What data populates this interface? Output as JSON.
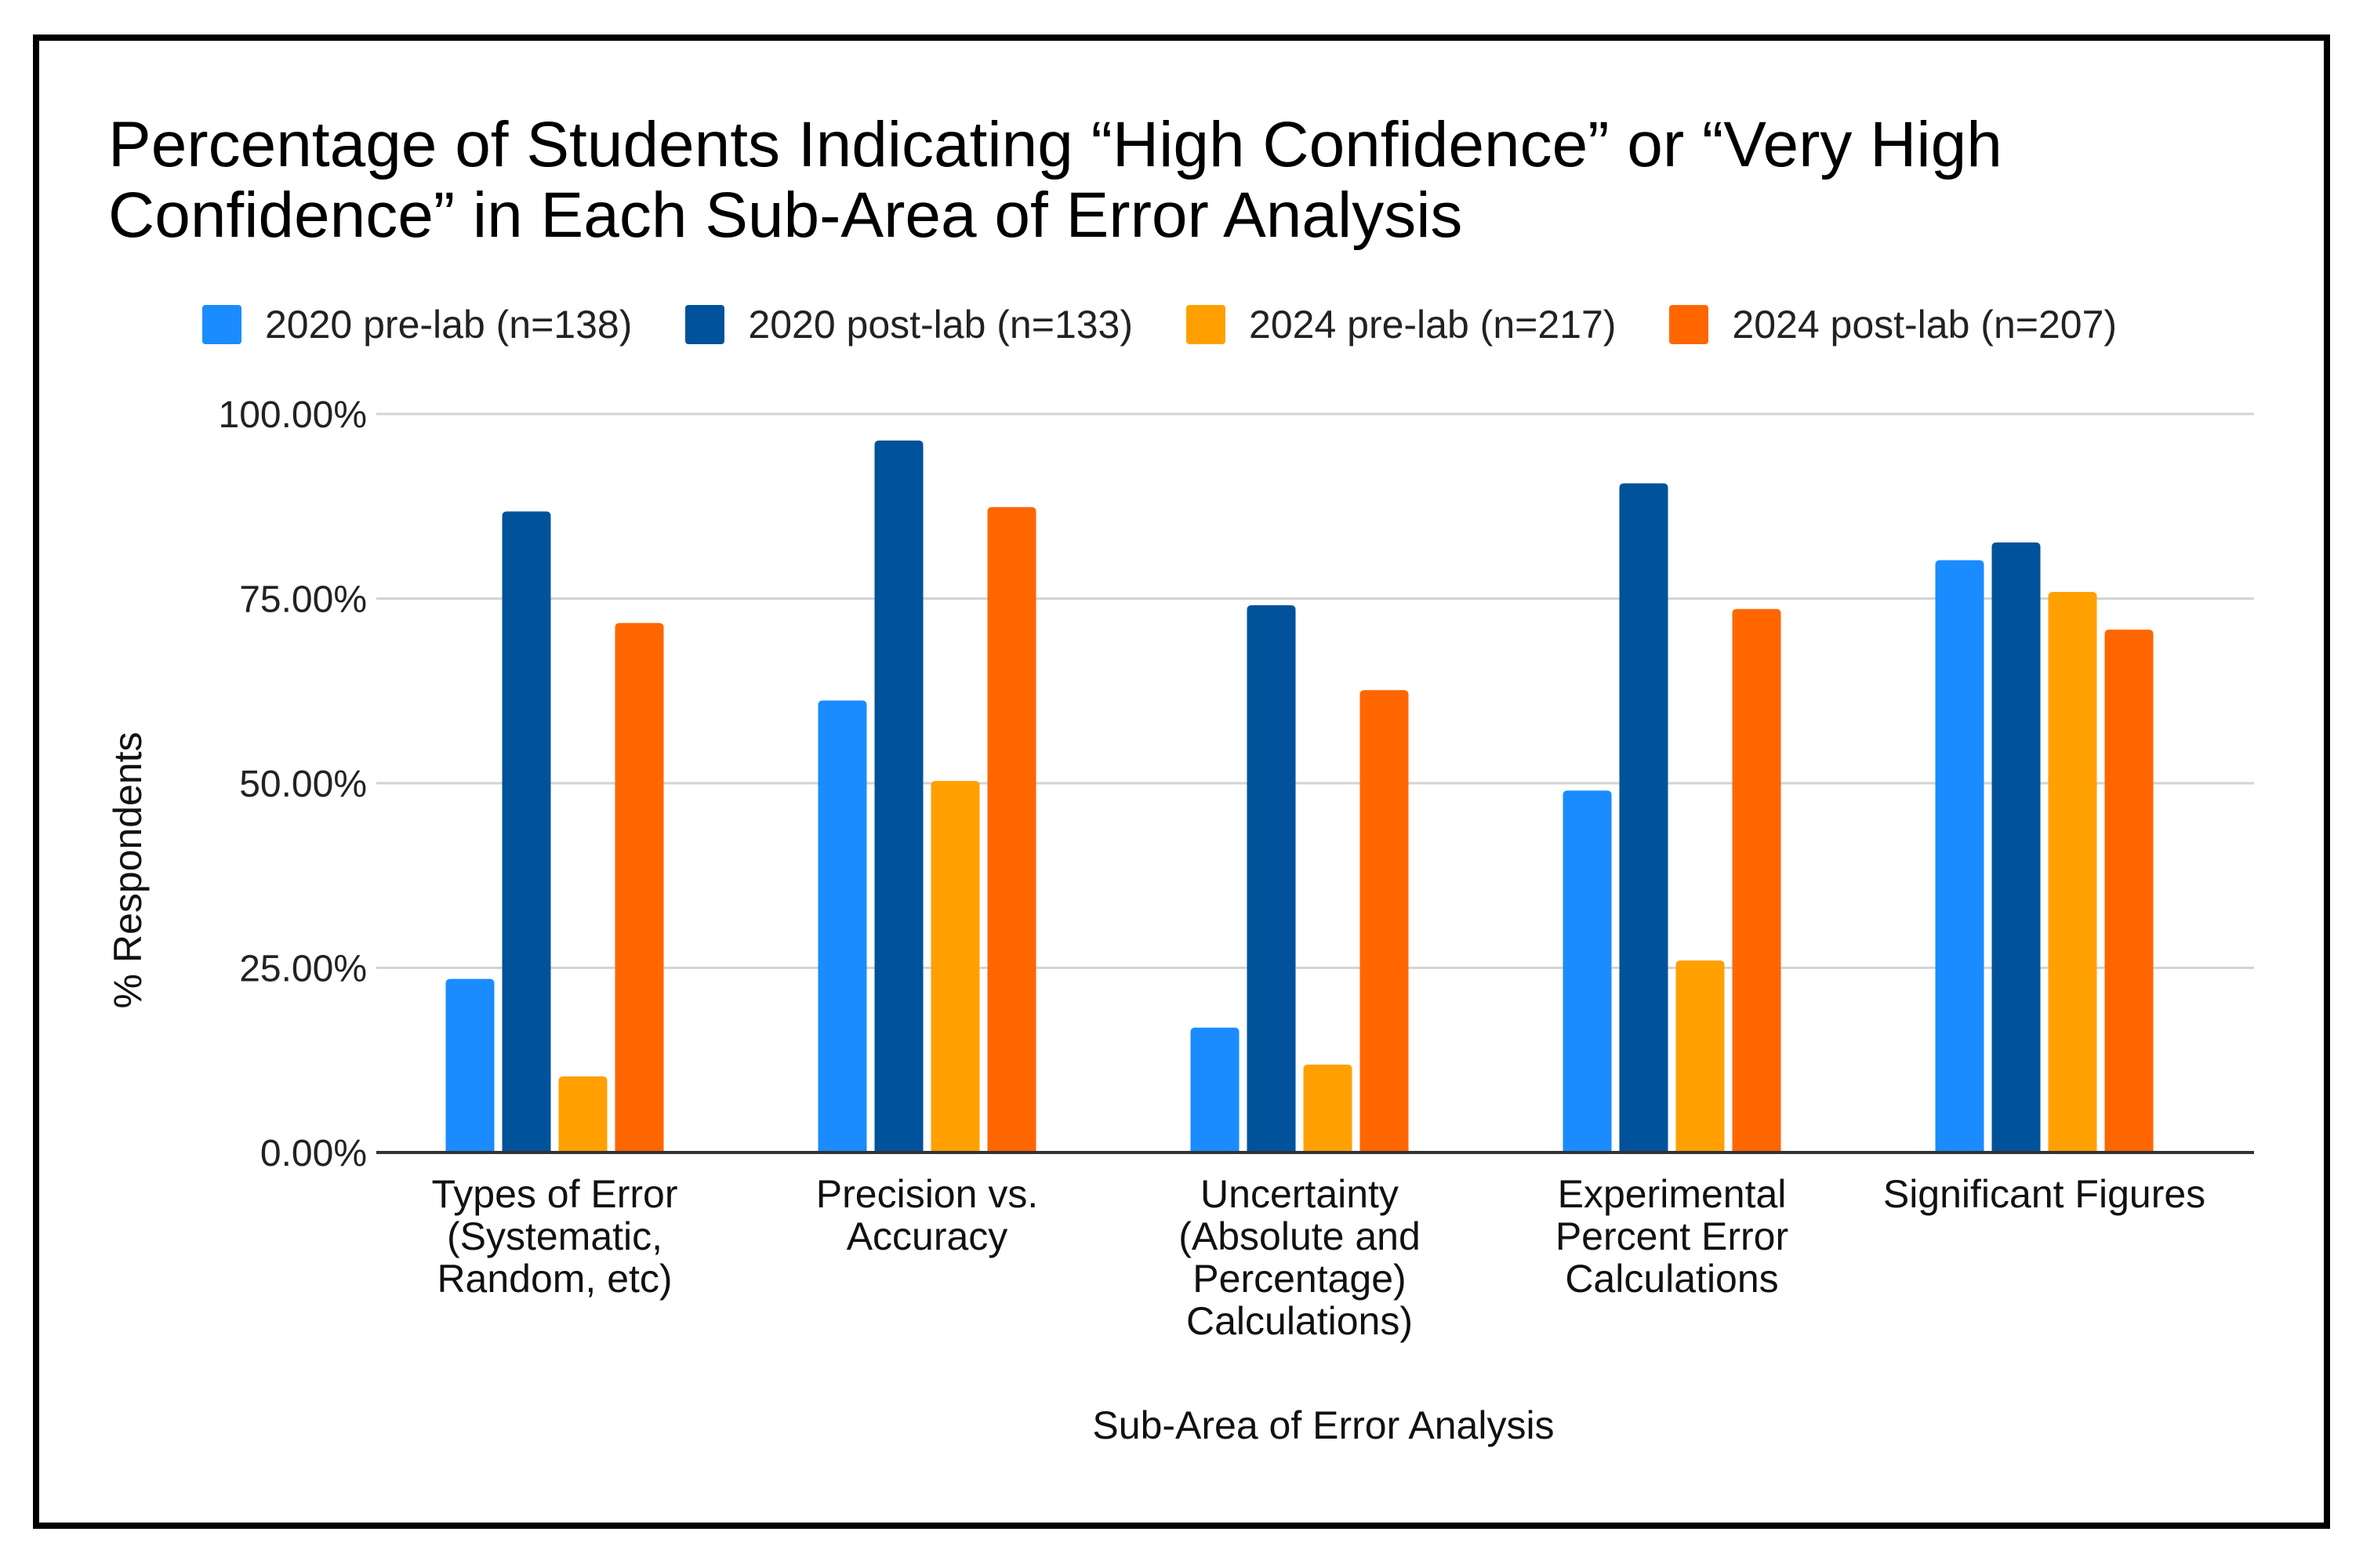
{
  "chart_data": {
    "type": "bar",
    "title_lines": [
      "Percentage of Students Indicating “High Confidence” or “Very High",
      "Confidence” in Each Sub-Area of Error Analysis"
    ],
    "xlabel": "Sub-Area of Error Analysis",
    "ylabel": "% Respondents",
    "ylim": [
      0,
      100
    ],
    "yticks": [
      "0.00%",
      "25.00%",
      "50.00%",
      "75.00%",
      "100.00%"
    ],
    "ytick_values": [
      0,
      25,
      50,
      75,
      100
    ],
    "grid": true,
    "legend_position": "top",
    "categories": [
      "Types of Error (Systematic, Random, etc)",
      "Precision vs. Accuracy",
      "Uncertainty (Absolute and Percentage) Calculations)",
      "Experimental Percent Error Calculations",
      "Significant Figures"
    ],
    "category_lines": [
      [
        "Types of Error",
        "(Systematic,",
        "Random, etc)"
      ],
      [
        "Precision vs.",
        "Accuracy"
      ],
      [
        "Uncertainty",
        "(Absolute and",
        "Percentage)",
        "Calculations)"
      ],
      [
        "Experimental",
        "Percent Error",
        "Calculations"
      ],
      [
        "Significant Figures"
      ]
    ],
    "series": [
      {
        "name": "2020 pre-lab (n=138)",
        "color": "#1a8cff",
        "values": [
          23.5,
          61.2,
          16.9,
          49.0,
          80.2
        ]
      },
      {
        "name": "2020 post-lab (n=133)",
        "color": "#00529b",
        "values": [
          86.8,
          96.4,
          74.1,
          90.6,
          82.6
        ]
      },
      {
        "name": "2024 pre-lab (n=217)",
        "color": "#ffa000",
        "values": [
          10.3,
          50.3,
          11.9,
          26.0,
          75.9
        ]
      },
      {
        "name": "2024 post-lab (n=207)",
        "color": "#ff6600",
        "values": [
          71.7,
          87.4,
          62.6,
          73.6,
          70.8
        ]
      }
    ]
  }
}
